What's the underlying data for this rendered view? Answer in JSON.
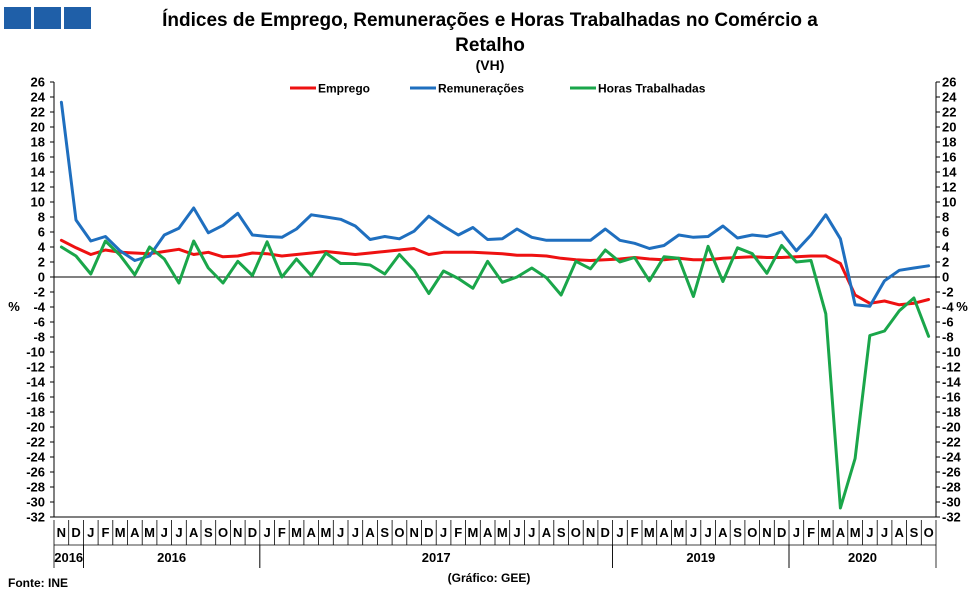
{
  "header": {
    "title_line1": "Índices de Emprego,  Remunerações e Horas Trabalhadas  no Comércio a",
    "title_line2": "Retalho",
    "subtitle": "(VH)",
    "logo_colors": [
      "#1f5fa8",
      "#1f5fa8",
      "#1f5fa8"
    ]
  },
  "footer": {
    "source": "Fonte: INE",
    "credit": "(Gráfico:  GEE)"
  },
  "chart_data": {
    "type": "line",
    "title": "Índices de Emprego,  Remunerações e Horas Trabalhadas  no Comércio a Retalho",
    "subtitle": "(VH)",
    "ylabel": "%",
    "ylim": [
      -32,
      26
    ],
    "yticks": [
      -32,
      -30,
      -28,
      -26,
      -24,
      -22,
      -20,
      -18,
      -16,
      -14,
      -12,
      -10,
      -8,
      -6,
      -4,
      -2,
      0,
      2,
      4,
      6,
      8,
      10,
      12,
      14,
      16,
      18,
      20,
      22,
      24,
      26
    ],
    "grid": false,
    "legend_position": "top-center",
    "categories": [
      "N",
      "D",
      "J",
      "F",
      "M",
      "A",
      "M",
      "J",
      "J",
      "A",
      "S",
      "O",
      "N",
      "D",
      "J",
      "F",
      "M",
      "A",
      "M",
      "J",
      "J",
      "A",
      "S",
      "O",
      "N",
      "D",
      "J",
      "F",
      "M",
      "A",
      "M",
      "J",
      "J",
      "A",
      "S",
      "O",
      "N",
      "D",
      "J",
      "F",
      "M",
      "A",
      "M",
      "J",
      "J",
      "A",
      "S",
      "O",
      "N",
      "D",
      "J",
      "F",
      "M",
      "A",
      "M",
      "J",
      "J",
      "A",
      "S",
      "O"
    ],
    "year_groups": [
      {
        "label": "2016",
        "start": 0,
        "end": 1
      },
      {
        "label": "2016",
        "start": 2,
        "end": 13
      },
      {
        "label": "2017",
        "start": 14,
        "end": 37
      },
      {
        "label": "2019",
        "start": 38,
        "end": 49
      },
      {
        "label": "2020",
        "start": 50,
        "end": 59
      }
    ],
    "series": [
      {
        "name": "Emprego",
        "color": "#ee1111",
        "values": [
          4.9,
          3.9,
          3.0,
          3.6,
          3.3,
          3.2,
          3.1,
          3.4,
          3.7,
          3.0,
          3.3,
          2.7,
          2.8,
          3.2,
          3.1,
          2.8,
          3.0,
          3.2,
          3.4,
          3.2,
          3.0,
          3.2,
          3.4,
          3.6,
          3.8,
          3.0,
          3.3,
          3.3,
          3.3,
          3.2,
          3.1,
          2.9,
          2.9,
          2.8,
          2.5,
          2.3,
          2.2,
          2.3,
          2.4,
          2.6,
          2.4,
          2.3,
          2.5,
          2.3,
          2.3,
          2.5,
          2.6,
          2.7,
          2.6,
          2.6,
          2.7,
          2.8,
          2.8,
          1.8,
          -2.4,
          -3.5,
          -3.2,
          -3.7,
          -3.5,
          -3.0
        ]
      },
      {
        "name": "Remunerações",
        "color": "#1f6fbf",
        "values": [
          23.3,
          7.6,
          4.8,
          5.4,
          3.5,
          2.2,
          2.8,
          5.6,
          6.5,
          9.2,
          5.9,
          6.9,
          8.5,
          5.6,
          5.4,
          5.3,
          6.4,
          8.3,
          8.0,
          7.7,
          6.8,
          5.0,
          5.4,
          5.1,
          6.1,
          8.1,
          6.8,
          5.6,
          6.6,
          5.0,
          5.1,
          6.4,
          5.3,
          4.9,
          4.9,
          4.9,
          4.9,
          6.4,
          4.9,
          4.5,
          3.8,
          4.2,
          5.6,
          5.3,
          5.4,
          6.8,
          5.2,
          5.6,
          5.4,
          6.0,
          3.5,
          5.6,
          8.3,
          5.1,
          -3.7,
          -3.9,
          -0.5,
          0.9,
          1.2,
          1.5
        ]
      },
      {
        "name": "Horas Trabalhadas",
        "color": "#1aa64a",
        "values": [
          4.0,
          2.8,
          0.4,
          4.8,
          2.9,
          0.3,
          4.0,
          2.4,
          -0.8,
          4.8,
          1.2,
          -0.8,
          2.1,
          0.2,
          4.7,
          0.0,
          2.4,
          0.2,
          3.2,
          1.8,
          1.8,
          1.6,
          0.4,
          3.0,
          0.9,
          -2.2,
          0.8,
          -0.2,
          -1.5,
          2.1,
          -0.7,
          0.0,
          1.2,
          -0.1,
          -2.4,
          2.1,
          1.1,
          3.6,
          2.0,
          2.6,
          -0.5,
          2.7,
          2.5,
          -2.6,
          4.1,
          -0.6,
          3.9,
          3.1,
          0.5,
          4.2,
          2.0,
          2.2,
          -4.9,
          -30.8,
          -24.2,
          -7.8,
          -7.2,
          -4.5,
          -2.8,
          -7.9
        ]
      }
    ]
  }
}
